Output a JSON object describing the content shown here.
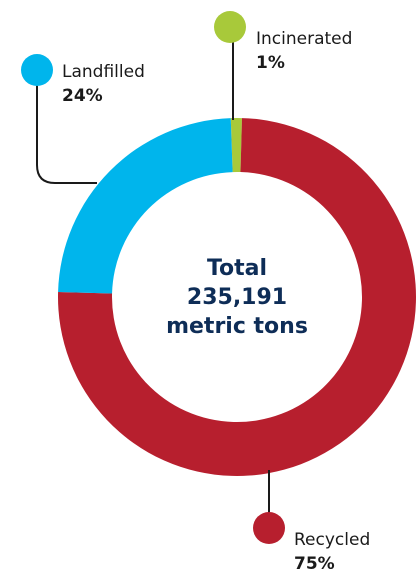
{
  "chart_data": {
    "type": "pie",
    "style": "donut",
    "categories": [
      "Recycled",
      "Landfilled",
      "Incinerated"
    ],
    "values": [
      75,
      24,
      1
    ],
    "value_labels": [
      "75%",
      "24%",
      "1%"
    ],
    "colors": [
      "#B71F2E",
      "#00B5EC",
      "#A8C93A"
    ],
    "center_text": [
      "Total",
      "235,191",
      "metric tons"
    ]
  },
  "colors": {
    "text": "#1a1a1a",
    "center_text": "#0E2D57",
    "leader_line": "#1a1a1a"
  }
}
